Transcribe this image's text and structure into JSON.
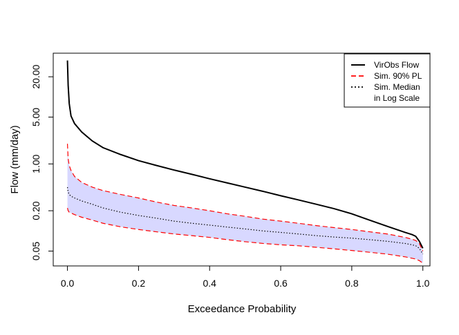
{
  "chart_data": {
    "type": "line",
    "title": "",
    "xlabel": "Exceedance Probability",
    "ylabel": "Flow (mm/day)",
    "xlim": [
      -0.04,
      1.02
    ],
    "ylim": [
      0.03,
      45
    ],
    "y_scale": "log",
    "x_ticks": [
      {
        "value": 0.0,
        "label": "0.0"
      },
      {
        "value": 0.2,
        "label": "0.2"
      },
      {
        "value": 0.4,
        "label": "0.4"
      },
      {
        "value": 0.6,
        "label": "0.6"
      },
      {
        "value": 0.8,
        "label": "0.8"
      },
      {
        "value": 1.0,
        "label": "1.0"
      }
    ],
    "y_ticks": [
      {
        "value": 0.05,
        "label": "0.05"
      },
      {
        "value": 0.2,
        "label": "0.20"
      },
      {
        "value": 1.0,
        "label": "1.00"
      },
      {
        "value": 5.0,
        "label": "5.00"
      },
      {
        "value": 20.0,
        "label": "20.00"
      }
    ],
    "legend": {
      "position": "top-right",
      "entries": [
        {
          "label": "VirObs Flow",
          "color": "#000000",
          "dash": "solid"
        },
        {
          "label": "Sim. 90% PL",
          "color": "#ff0000",
          "dash": "dashed"
        },
        {
          "label": "Sim. Median\nin Log Scale",
          "color": "#000000",
          "dash": "dotted"
        }
      ]
    },
    "band_fill": "#d8d8ff",
    "series": [
      {
        "name": "VirObs Flow",
        "color": "#000000",
        "dash": "solid",
        "x": [
          0.0,
          0.002,
          0.005,
          0.01,
          0.02,
          0.04,
          0.07,
          0.1,
          0.15,
          0.2,
          0.25,
          0.3,
          0.35,
          0.4,
          0.45,
          0.5,
          0.55,
          0.6,
          0.65,
          0.7,
          0.75,
          0.8,
          0.85,
          0.9,
          0.95,
          0.97,
          0.98,
          0.99,
          1.0
        ],
        "values": [
          35,
          15,
          8,
          5.2,
          4.0,
          3.0,
          2.2,
          1.75,
          1.38,
          1.12,
          0.95,
          0.81,
          0.7,
          0.6,
          0.52,
          0.45,
          0.39,
          0.335,
          0.29,
          0.25,
          0.215,
          0.18,
          0.145,
          0.117,
          0.095,
          0.088,
          0.083,
          0.07,
          0.055
        ]
      },
      {
        "name": "Sim. 90% PL (upper)",
        "color": "#ff0000",
        "dash": "dashed",
        "x": [
          0.0,
          0.002,
          0.005,
          0.01,
          0.02,
          0.04,
          0.07,
          0.1,
          0.15,
          0.2,
          0.25,
          0.3,
          0.35,
          0.4,
          0.45,
          0.5,
          0.55,
          0.6,
          0.65,
          0.7,
          0.75,
          0.8,
          0.85,
          0.9,
          0.95,
          0.97,
          0.98,
          0.99,
          1.0
        ],
        "values": [
          2.0,
          1.2,
          0.95,
          0.8,
          0.65,
          0.53,
          0.45,
          0.4,
          0.35,
          0.31,
          0.27,
          0.24,
          0.22,
          0.2,
          0.18,
          0.165,
          0.15,
          0.14,
          0.13,
          0.12,
          0.112,
          0.105,
          0.097,
          0.09,
          0.08,
          0.075,
          0.072,
          0.065,
          0.05
        ]
      },
      {
        "name": "Sim. 90% PL (lower)",
        "color": "#ff0000",
        "dash": "dashed",
        "x": [
          0.0,
          0.002,
          0.005,
          0.01,
          0.02,
          0.04,
          0.07,
          0.1,
          0.15,
          0.2,
          0.25,
          0.3,
          0.35,
          0.4,
          0.45,
          0.5,
          0.55,
          0.6,
          0.65,
          0.7,
          0.75,
          0.8,
          0.85,
          0.9,
          0.95,
          0.97,
          0.98,
          0.99,
          1.0
        ],
        "values": [
          0.22,
          0.2,
          0.19,
          0.185,
          0.175,
          0.16,
          0.145,
          0.13,
          0.115,
          0.105,
          0.097,
          0.09,
          0.085,
          0.08,
          0.074,
          0.069,
          0.065,
          0.062,
          0.06,
          0.057,
          0.054,
          0.051,
          0.048,
          0.045,
          0.041,
          0.039,
          0.038,
          0.036,
          0.033
        ]
      },
      {
        "name": "Sim. Median in Log Scale",
        "color": "#000000",
        "dash": "dotted",
        "x": [
          0.0,
          0.002,
          0.005,
          0.01,
          0.02,
          0.04,
          0.07,
          0.1,
          0.15,
          0.2,
          0.25,
          0.3,
          0.35,
          0.4,
          0.45,
          0.5,
          0.55,
          0.6,
          0.65,
          0.7,
          0.75,
          0.8,
          0.85,
          0.9,
          0.95,
          0.97,
          0.98,
          0.99,
          1.0
        ],
        "values": [
          0.45,
          0.38,
          0.35,
          0.33,
          0.31,
          0.28,
          0.25,
          0.22,
          0.19,
          0.17,
          0.155,
          0.14,
          0.13,
          0.122,
          0.114,
          0.107,
          0.1,
          0.095,
          0.09,
          0.085,
          0.081,
          0.078,
          0.074,
          0.07,
          0.065,
          0.062,
          0.06,
          0.055,
          0.045
        ]
      }
    ]
  }
}
